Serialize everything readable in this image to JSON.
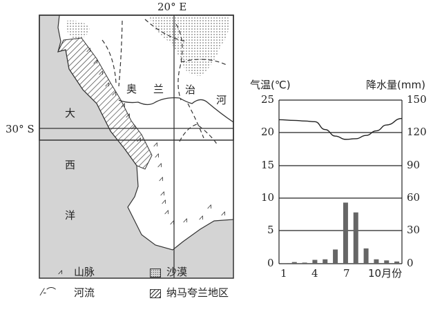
{
  "map": {
    "longitude_label": "20° E",
    "latitude_label": "30° S",
    "ocean_chars": [
      "大",
      "西",
      "洋"
    ],
    "river_chars": [
      "奥",
      "兰",
      "治",
      "河"
    ],
    "legend": {
      "mountains": "山脉",
      "desert": "沙漠",
      "rivers": "河流",
      "namaqualand": "纳马夸兰地区"
    }
  },
  "chart_data": {
    "type": "bar+line",
    "title": "",
    "xlabel": "月份",
    "ylabel_left": "气温(℃)",
    "ylabel_right": "降水量(mm)",
    "categories": [
      1,
      2,
      3,
      4,
      5,
      6,
      7,
      8,
      9,
      10,
      11,
      12
    ],
    "x_tick_labels": [
      "1",
      "4",
      "7",
      "10月份"
    ],
    "ylim_left": [
      0,
      25
    ],
    "ylim_right": [
      0,
      150
    ],
    "left_ticks": [
      "25",
      "20",
      "15",
      "10",
      "5",
      "0"
    ],
    "right_ticks": [
      "150",
      "120",
      "90",
      "60",
      "30",
      "0"
    ],
    "grid": true,
    "series": [
      {
        "name": "气温",
        "type": "line",
        "axis": "left",
        "values": [
          22,
          21.9,
          21.8,
          21.7,
          20.5,
          19.5,
          19.0,
          19.1,
          19.6,
          20.3,
          21.2,
          22.2
        ]
      },
      {
        "name": "降水量",
        "type": "bar",
        "axis": "right",
        "values": [
          0.5,
          1.5,
          1,
          3.5,
          4,
          13,
          56,
          47,
          14,
          4,
          3,
          2
        ]
      }
    ]
  }
}
